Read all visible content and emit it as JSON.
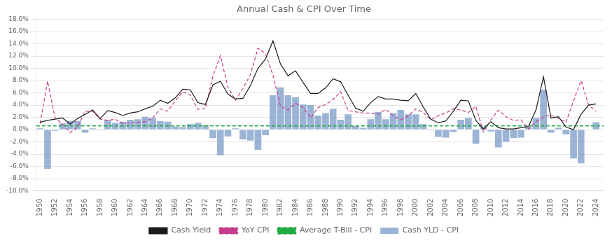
{
  "chart_data": {
    "type": "bar",
    "title": "Annual Cash & CPI Over Time",
    "x": [
      1950,
      1951,
      1952,
      1953,
      1954,
      1955,
      1956,
      1957,
      1958,
      1959,
      1960,
      1961,
      1962,
      1963,
      1964,
      1965,
      1966,
      1967,
      1968,
      1969,
      1970,
      1971,
      1972,
      1973,
      1974,
      1975,
      1976,
      1977,
      1978,
      1979,
      1980,
      1981,
      1982,
      1983,
      1984,
      1985,
      1986,
      1987,
      1988,
      1989,
      1990,
      1991,
      1992,
      1993,
      1994,
      1995,
      1996,
      1997,
      1998,
      1999,
      2000,
      2001,
      2002,
      2003,
      2004,
      2005,
      2006,
      2007,
      2008,
      2009,
      2010,
      2011,
      2012,
      2013,
      2014,
      2015,
      2016,
      2017,
      2018,
      2019,
      2020,
      2021,
      2022,
      2023,
      2024
    ],
    "series": [
      {
        "name": "Cash YLD - CPI",
        "type": "bar",
        "color": "#7094c4",
        "values": [
          0.002,
          -0.064,
          -0.002,
          0.01,
          0.014,
          0.014,
          -0.005,
          0.002,
          0.001,
          0.016,
          0.011,
          0.013,
          0.016,
          0.017,
          0.021,
          0.019,
          0.014,
          0.013,
          0.005,
          0.004,
          0.009,
          0.011,
          0.007,
          -0.014,
          -0.042,
          -0.011,
          0.002,
          -0.016,
          -0.018,
          -0.033,
          -0.009,
          0.056,
          0.069,
          0.056,
          0.053,
          0.041,
          0.04,
          0.023,
          0.027,
          0.034,
          0.016,
          0.025,
          0.006,
          0.003,
          0.017,
          0.029,
          0.017,
          0.027,
          0.032,
          0.025,
          0.025,
          0.009,
          0.001,
          -0.012,
          -0.013,
          -0.004,
          0.016,
          0.019,
          -0.023,
          0.005,
          -0.003,
          -0.029,
          -0.02,
          -0.014,
          -0.013,
          0.004,
          0.019,
          0.065,
          -0.005,
          0.003,
          -0.008,
          -0.047,
          -0.055,
          0.0,
          0.012
        ]
      },
      {
        "name": "YoY CPI",
        "type": "line",
        "line_style": "dashed",
        "color": "#c63b8a",
        "values": [
          0.01,
          0.079,
          0.019,
          0.009,
          -0.005,
          0.004,
          0.03,
          0.03,
          0.017,
          0.015,
          0.017,
          0.01,
          0.011,
          0.012,
          0.013,
          0.019,
          0.034,
          0.03,
          0.047,
          0.062,
          0.056,
          0.033,
          0.034,
          0.087,
          0.121,
          0.069,
          0.048,
          0.067,
          0.09,
          0.133,
          0.124,
          0.089,
          0.038,
          0.032,
          0.043,
          0.036,
          0.019,
          0.036,
          0.041,
          0.049,
          0.062,
          0.031,
          0.029,
          0.027,
          0.027,
          0.025,
          0.033,
          0.023,
          0.016,
          0.022,
          0.034,
          0.028,
          0.016,
          0.023,
          0.027,
          0.034,
          0.032,
          0.028,
          0.038,
          -0.004,
          0.016,
          0.032,
          0.021,
          0.015,
          0.016,
          0.001,
          0.013,
          0.021,
          0.024,
          0.018,
          0.012,
          0.047,
          0.08,
          0.04,
          0.03
        ]
      },
      {
        "name": "Cash Yield",
        "type": "line",
        "line_style": "solid",
        "color": "#1a1a1a",
        "values": [
          0.012,
          0.015,
          0.017,
          0.019,
          0.009,
          0.018,
          0.025,
          0.032,
          0.018,
          0.031,
          0.028,
          0.023,
          0.027,
          0.029,
          0.034,
          0.038,
          0.048,
          0.043,
          0.052,
          0.066,
          0.065,
          0.044,
          0.041,
          0.073,
          0.079,
          0.058,
          0.05,
          0.051,
          0.072,
          0.1,
          0.115,
          0.145,
          0.107,
          0.088,
          0.096,
          0.077,
          0.059,
          0.059,
          0.068,
          0.083,
          0.078,
          0.056,
          0.035,
          0.03,
          0.044,
          0.054,
          0.05,
          0.05,
          0.048,
          0.047,
          0.059,
          0.037,
          0.017,
          0.011,
          0.014,
          0.03,
          0.048,
          0.047,
          0.015,
          0.001,
          0.013,
          0.003,
          0.001,
          0.001,
          0.003,
          0.005,
          0.032,
          0.086,
          0.019,
          0.021,
          0.004,
          0.0,
          0.025,
          0.04,
          0.042
        ]
      },
      {
        "name": "Average T-Bill - CPI",
        "type": "hline",
        "line_style": "dashed",
        "color": "#22aa44",
        "value": 0.006
      }
    ],
    "xlim": [
      1949.5,
      2025.0
    ],
    "xticks": [
      1950,
      1952,
      1954,
      1956,
      1958,
      1960,
      1962,
      1964,
      1966,
      1968,
      1970,
      1972,
      1974,
      1976,
      1978,
      1980,
      1982,
      1984,
      1986,
      1988,
      1990,
      1992,
      1994,
      1996,
      1998,
      2000,
      2002,
      2004,
      2006,
      2008,
      2010,
      2012,
      2014,
      2016,
      2018,
      2020,
      2022,
      2024
    ],
    "ylim": [
      -0.1,
      0.18
    ],
    "yticks": [
      {
        "value": -0.1,
        "label": "-10.0%"
      },
      {
        "value": -0.08,
        "label": "-8.0%"
      },
      {
        "value": -0.06,
        "label": "-6.0%"
      },
      {
        "value": -0.04,
        "label": "-4.0%"
      },
      {
        "value": -0.02,
        "label": "-2.0%"
      },
      {
        "value": 0.0,
        "label": "0.0%"
      },
      {
        "value": 0.02,
        "label": "2.0%"
      },
      {
        "value": 0.04,
        "label": "4.0%"
      },
      {
        "value": 0.06,
        "label": "6.0%"
      },
      {
        "value": 0.08,
        "label": "8.0%"
      },
      {
        "value": 0.1,
        "label": "10.0%"
      },
      {
        "value": 0.12,
        "label": "12.0%"
      },
      {
        "value": 0.14,
        "label": "14.0%"
      },
      {
        "value": 0.16,
        "label": "16.0%"
      },
      {
        "value": 0.18,
        "label": "18.0%"
      }
    ],
    "grid": "y",
    "legend": "bottom"
  }
}
